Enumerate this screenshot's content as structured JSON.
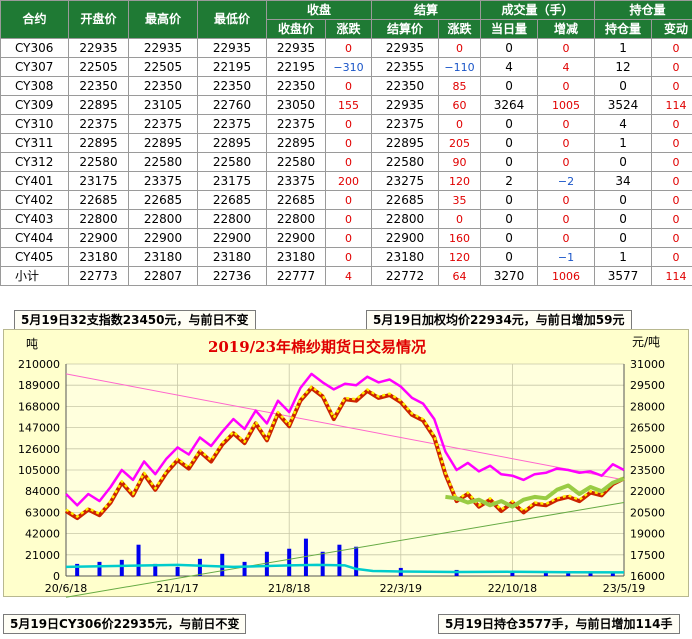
{
  "table": {
    "groups": {
      "close": "收盘",
      "settle": "结算",
      "volume": "成交量（手）",
      "oi": "持仓量"
    },
    "headers": {
      "contract": "合约",
      "open": "开盘价",
      "high": "最高价",
      "low": "最低价",
      "close_price": "收盘价",
      "close_chg": "涨跌",
      "settle_price": "结算价",
      "settle_chg": "涨跌",
      "vol_today": "当日量",
      "vol_chg": "增减",
      "oi_qty": "持仓量",
      "oi_chg": "变动"
    },
    "rows": [
      [
        "CY306",
        "22935",
        "22935",
        "22935",
        "22935",
        "0",
        "22935",
        "0",
        "0",
        "0",
        "1",
        "0"
      ],
      [
        "CY307",
        "22505",
        "22505",
        "22195",
        "22195",
        "−310",
        "22355",
        "−110",
        "4",
        "4",
        "12",
        "0"
      ],
      [
        "CY308",
        "22350",
        "22350",
        "22350",
        "22350",
        "0",
        "22350",
        "85",
        "0",
        "0",
        "0",
        "0"
      ],
      [
        "CY309",
        "22895",
        "23105",
        "22760",
        "23050",
        "155",
        "22935",
        "60",
        "3264",
        "1005",
        "3524",
        "114"
      ],
      [
        "CY310",
        "22375",
        "22375",
        "22375",
        "22375",
        "0",
        "22375",
        "0",
        "0",
        "0",
        "4",
        "0"
      ],
      [
        "CY311",
        "22895",
        "22895",
        "22895",
        "22895",
        "0",
        "22895",
        "205",
        "0",
        "0",
        "1",
        "0"
      ],
      [
        "CY312",
        "22580",
        "22580",
        "22580",
        "22580",
        "0",
        "22580",
        "90",
        "0",
        "0",
        "0",
        "0"
      ],
      [
        "CY401",
        "23175",
        "23375",
        "23175",
        "23375",
        "200",
        "23275",
        "120",
        "2",
        "−2",
        "34",
        "0"
      ],
      [
        "CY402",
        "22685",
        "22685",
        "22685",
        "22685",
        "0",
        "22685",
        "35",
        "0",
        "0",
        "0",
        "0"
      ],
      [
        "CY403",
        "22800",
        "22800",
        "22800",
        "22800",
        "0",
        "22800",
        "0",
        "0",
        "0",
        "0",
        "0"
      ],
      [
        "CY404",
        "22900",
        "22900",
        "22900",
        "22900",
        "0",
        "22900",
        "160",
        "0",
        "0",
        "0",
        "0"
      ],
      [
        "CY405",
        "23180",
        "23180",
        "23180",
        "23180",
        "0",
        "23180",
        "120",
        "0",
        "−1",
        "1",
        "0"
      ],
      [
        "小计",
        "22773",
        "22807",
        "22736",
        "22777",
        "4",
        "22772",
        "64",
        "3270",
        "1006",
        "3577",
        "114"
      ]
    ]
  },
  "notes": {
    "top_left": "5月19日32支指数23450元，与前日不变",
    "top_right": "5月19日加权均价22934元，与前日增加59元",
    "bottom_left": "5月19日CY306价22935元，与前日不变",
    "bottom_right": "5月19日持仓3577手，与前日增加114手"
  },
  "chart_data": {
    "type": "line",
    "title": "2019/23年棉纱期货日交易情况",
    "left_unit": "吨",
    "right_unit": "元/吨",
    "x_ticks": [
      "20/6/18",
      "21/1/17",
      "21/8/18",
      "22/3/19",
      "22/10/18",
      "23/5/19"
    ],
    "left_axis": {
      "range": [
        0,
        210000
      ],
      "ticks": [
        0,
        21000,
        42000,
        63000,
        84000,
        105000,
        126000,
        147000,
        168000,
        189000,
        210000
      ]
    },
    "right_axis": {
      "range": [
        16000,
        31000
      ],
      "ticks": [
        16000,
        17500,
        19000,
        20500,
        22000,
        23500,
        25000,
        26500,
        28000,
        29500,
        31000
      ]
    },
    "series": [
      {
        "color": "#ff00ff",
        "axis": "right",
        "x": [
          0,
          0.02,
          0.04,
          0.06,
          0.08,
          0.1,
          0.12,
          0.14,
          0.16,
          0.18,
          0.2,
          0.22,
          0.24,
          0.26,
          0.28,
          0.3,
          0.32,
          0.34,
          0.36,
          0.38,
          0.4,
          0.42,
          0.44,
          0.46,
          0.48,
          0.5,
          0.52,
          0.54,
          0.56,
          0.58,
          0.6,
          0.62,
          0.64,
          0.66,
          0.68,
          0.7,
          0.72,
          0.74,
          0.76,
          0.78,
          0.8,
          0.82,
          0.84,
          0.86,
          0.88,
          0.9,
          0.92,
          0.94,
          0.96,
          0.98,
          1.0
        ],
        "y": [
          21800,
          21000,
          21800,
          21300,
          22300,
          23500,
          22800,
          24100,
          23200,
          24300,
          25100,
          24600,
          25800,
          25200,
          26200,
          27100,
          26400,
          27700,
          26800,
          28400,
          27600,
          29300,
          30300,
          29700,
          29200,
          29600,
          29500,
          30100,
          29700,
          29900,
          29400,
          28600,
          28200,
          27100,
          24800,
          23500,
          24000,
          23400,
          23800,
          23200,
          23100,
          22800,
          23200,
          23300,
          23600,
          23500,
          23300,
          23400,
          23100,
          23900,
          23500
        ]
      },
      {
        "color": "#cc2200",
        "axis": "right",
        "x": [
          0,
          0.02,
          0.04,
          0.06,
          0.08,
          0.1,
          0.12,
          0.14,
          0.16,
          0.18,
          0.2,
          0.22,
          0.24,
          0.26,
          0.28,
          0.3,
          0.32,
          0.34,
          0.36,
          0.38,
          0.4,
          0.42,
          0.44,
          0.46,
          0.48,
          0.5,
          0.52,
          0.54,
          0.56,
          0.58,
          0.6,
          0.62,
          0.64,
          0.66,
          0.68,
          0.7,
          0.72,
          0.74,
          0.76,
          0.78,
          0.8,
          0.82,
          0.84,
          0.86,
          0.88,
          0.9,
          0.92,
          0.94,
          0.96,
          0.98,
          1.0
        ],
        "y": [
          20600,
          20100,
          20700,
          20300,
          21200,
          22600,
          21700,
          23200,
          22100,
          23300,
          24200,
          23600,
          24800,
          24100,
          25300,
          26100,
          25400,
          26800,
          25600,
          27500,
          26600,
          28400,
          29300,
          28700,
          27100,
          28500,
          28400,
          29100,
          28600,
          28800,
          28300,
          27400,
          27000,
          25800,
          23200,
          21300,
          21800,
          20900,
          21400,
          20600,
          21200,
          20500,
          21100,
          21000,
          21400,
          21600,
          21300,
          21900,
          21700,
          22500,
          22900
        ]
      },
      {
        "color": "#ffee00",
        "axis": "right",
        "x": [
          0,
          0.02,
          0.04,
          0.06,
          0.08,
          0.1,
          0.12,
          0.14,
          0.16,
          0.18,
          0.2,
          0.22,
          0.24,
          0.26,
          0.28,
          0.3,
          0.32,
          0.34,
          0.36,
          0.38,
          0.4,
          0.42,
          0.44,
          0.46,
          0.48,
          0.5,
          0.52,
          0.54,
          0.56,
          0.58,
          0.6,
          0.62,
          0.64,
          0.66,
          0.68,
          0.7,
          0.72,
          0.74,
          0.76,
          0.78,
          0.8,
          0.82,
          0.84,
          0.86,
          0.88,
          0.9,
          0.92,
          0.94,
          0.96,
          0.98,
          1.0
        ],
        "y": [
          20700,
          20200,
          20800,
          20400,
          21300,
          22700,
          21800,
          23300,
          22200,
          23400,
          24300,
          23700,
          24900,
          24200,
          25400,
          26200,
          25500,
          26900,
          25700,
          27600,
          26700,
          28500,
          29400,
          28800,
          27200,
          28600,
          28500,
          29200,
          28700,
          28900,
          28400,
          27500,
          27100,
          25900,
          23300,
          21400,
          21900,
          21000,
          21500,
          20700,
          21300,
          20600,
          21200,
          21100,
          21500,
          21700,
          21400,
          22000,
          21800,
          22600,
          23000
        ]
      },
      {
        "color": "#99cc44",
        "axis": "right",
        "x": [
          0.68,
          0.7,
          0.72,
          0.74,
          0.76,
          0.78,
          0.8,
          0.82,
          0.84,
          0.86,
          0.88,
          0.9,
          0.92,
          0.94,
          0.96,
          0.98,
          1.0
        ],
        "y": [
          21600,
          21500,
          21200,
          21400,
          21000,
          21300,
          20900,
          21400,
          21600,
          21500,
          22100,
          22400,
          21800,
          22300,
          22000,
          22600,
          22900
        ]
      },
      {
        "color": "#00cccc",
        "axis": "left",
        "x": [
          0,
          0.1,
          0.2,
          0.3,
          0.4,
          0.45,
          0.5,
          0.52,
          0.55,
          0.6,
          0.7,
          0.8,
          0.9,
          1.0
        ],
        "y": [
          9000,
          10000,
          11000,
          9000,
          10500,
          11000,
          10500,
          7000,
          5000,
          4500,
          4000,
          4200,
          3800,
          3577
        ]
      },
      {
        "color": "#0000ee",
        "axis": "left",
        "kind": "bars",
        "x": [
          0.02,
          0.06,
          0.1,
          0.13,
          0.16,
          0.2,
          0.24,
          0.28,
          0.32,
          0.36,
          0.4,
          0.43,
          0.46,
          0.49,
          0.52,
          0.6,
          0.7,
          0.8,
          0.86,
          0.9,
          0.94,
          0.98
        ],
        "y": [
          12000,
          14000,
          16000,
          31000,
          12000,
          9000,
          17000,
          22000,
          14000,
          24000,
          27000,
          37000,
          24000,
          31000,
          29000,
          8000,
          6000,
          5000,
          5000,
          4000,
          3000,
          3270
        ]
      }
    ],
    "trendlines": [
      {
        "color": "#ff66cc",
        "axis": "right",
        "x": [
          0.0,
          1.0
        ],
        "y": [
          30300,
          22800
        ]
      },
      {
        "color": "#66aa44",
        "axis": "right",
        "x": [
          0.0,
          1.0
        ],
        "y": [
          14500,
          21200
        ]
      }
    ]
  }
}
